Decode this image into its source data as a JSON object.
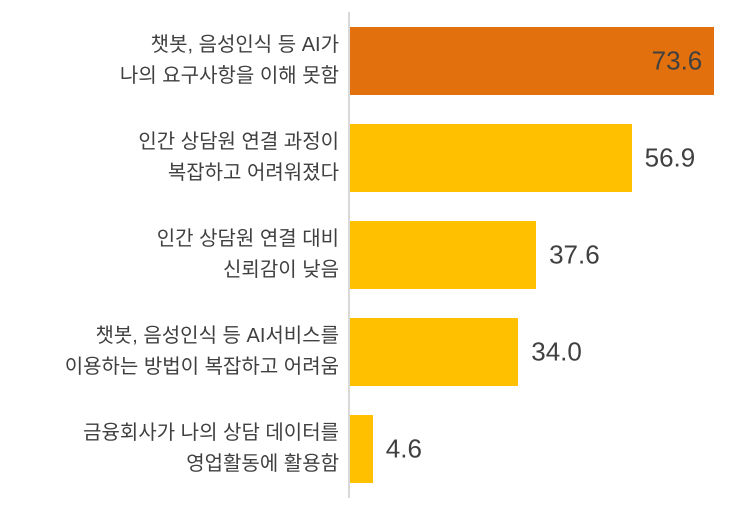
{
  "chart_data": {
    "type": "bar",
    "orientation": "horizontal",
    "categories": [
      "챗봇, 음성인식 등 AI가 나의 요구사항을 이해 못함",
      "인간 상담원 연결 과정이 복잡하고 어려워졌다",
      "인간 상담원 연결 대비 신뢰감이 낮음",
      "챗봇, 음성인식 등 AI서비스를 이용하는 방법이 복잡하고 어려움",
      "금융회사가 나의 상담 데이터를 영업활동에 활용함"
    ],
    "category_lines": [
      [
        "챗봇, 음성인식 등 AI가",
        "나의 요구사항을 이해 못함"
      ],
      [
        "인간 상담원 연결 과정이",
        "복잡하고 어려워졌다"
      ],
      [
        "인간 상담원 연결 대비",
        "신뢰감이 낮음"
      ],
      [
        "챗봇, 음성인식 등 AI서비스를",
        "이용하는 방법이 복잡하고 어려움"
      ],
      [
        "금융회사가 나의 상담 데이터를",
        "영업활동에 활용함"
      ]
    ],
    "values": [
      73.6,
      56.9,
      37.6,
      34.0,
      4.6
    ],
    "value_labels": [
      "73.6",
      "56.9",
      "37.6",
      "34.0",
      "4.6"
    ],
    "bar_colors": [
      "#E2700D",
      "#FFC000",
      "#FFC000",
      "#FFC000",
      "#FFC000"
    ],
    "value_label_placement": [
      "inside",
      "outside",
      "outside",
      "outside",
      "outside"
    ],
    "xlim": [
      0,
      79
    ],
    "grid": false,
    "legend": false,
    "axis_line_color": "#D9D9D9",
    "text_color": "#404040",
    "highlight_color": "#E2700D",
    "default_bar_color": "#FFC000"
  }
}
